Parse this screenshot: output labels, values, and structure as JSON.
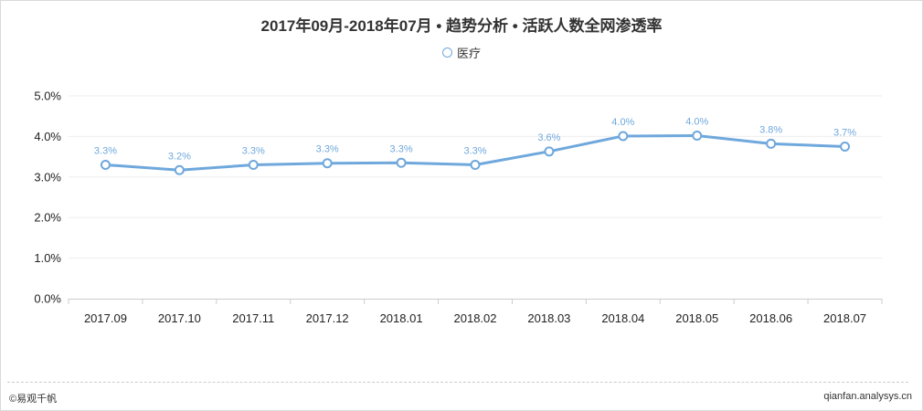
{
  "title": "2017年09月-2018年07月 • 趋势分析 • 活跃人数全网渗透率",
  "legend": {
    "series_name": "医疗"
  },
  "footer": {
    "left": "©易观千帆",
    "right": "qianfan.analysys.cn"
  },
  "colors": {
    "line": "#6fa8dc",
    "grid": "#eeeeee",
    "axis": "#cccccc"
  },
  "chart_data": {
    "type": "line",
    "title": "2017年09月-2018年07月 • 趋势分析 • 活跃人数全网渗透率",
    "categories": [
      "2017.09",
      "2017.10",
      "2017.11",
      "2017.12",
      "2018.01",
      "2018.02",
      "2018.03",
      "2018.04",
      "2018.05",
      "2018.06",
      "2018.07"
    ],
    "series": [
      {
        "name": "医疗",
        "values": [
          3.3,
          3.17,
          3.3,
          3.34,
          3.35,
          3.3,
          3.63,
          4.01,
          4.02,
          3.82,
          3.75
        ],
        "labels": [
          "3.3%",
          "3.2%",
          "3.3%",
          "3.3%",
          "3.3%",
          "3.3%",
          "3.6%",
          "4.0%",
          "4.0%",
          "3.8%",
          "3.7%"
        ]
      }
    ],
    "yticks": [
      "0.0%",
      "1.0%",
      "2.0%",
      "3.0%",
      "4.0%",
      "5.0%"
    ],
    "ylim": [
      0,
      5
    ],
    "xlabel": "",
    "ylabel": "",
    "grid": true,
    "legend_position": "top-center"
  }
}
